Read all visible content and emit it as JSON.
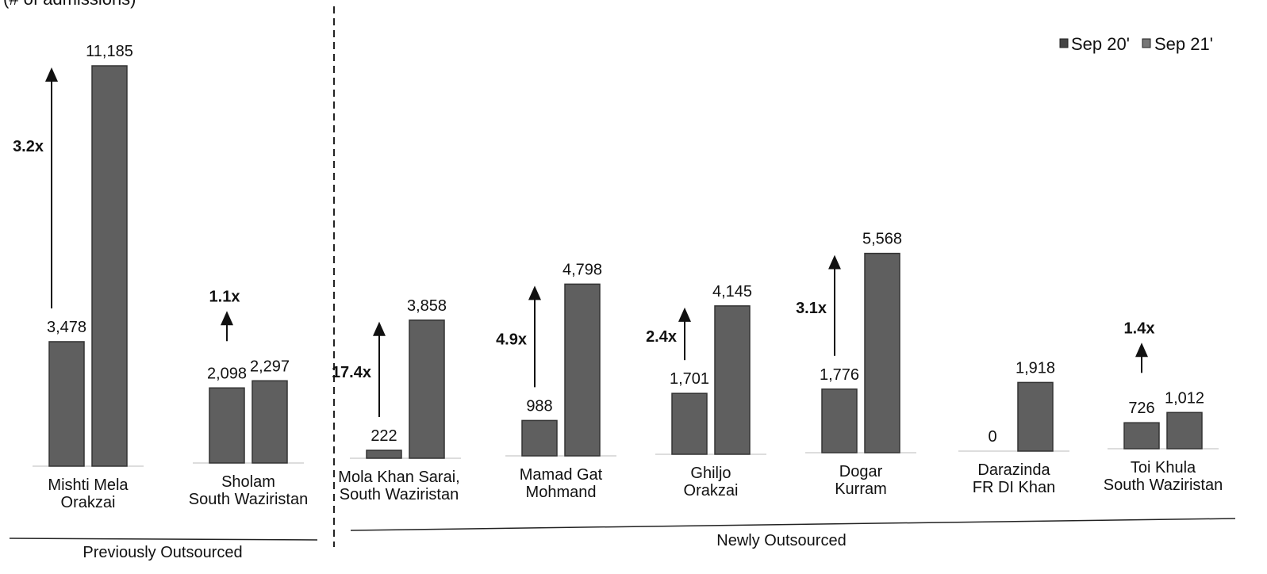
{
  "chart_data": {
    "type": "bar",
    "title_partial": "(# of admissions)",
    "legend_position": "top-right",
    "grid": false,
    "ylim": [
      0,
      11185
    ],
    "categories": [
      [
        "Mishti Mela",
        "Orakzai"
      ],
      [
        "Sholam",
        "South Waziristan"
      ],
      [
        "Mola Khan Sarai,",
        "South Waziristan"
      ],
      [
        "Mamad Gat",
        "Mohmand"
      ],
      [
        "Ghiljo",
        "Orakzai"
      ],
      [
        "Dogar",
        "Kurram"
      ],
      [
        "Darazinda",
        "FR DI Khan"
      ],
      [
        "Toi Khula",
        "South Waziristan"
      ]
    ],
    "series": [
      {
        "name": "Sep 20'",
        "values": [
          3478,
          2098,
          222,
          988,
          1701,
          1776,
          0,
          726
        ]
      },
      {
        "name": "Sep 21'",
        "values": [
          11185,
          2297,
          3858,
          4798,
          4145,
          5568,
          1918,
          1012
        ]
      }
    ],
    "value_labels": {
      "sep20": [
        "3,478",
        "2,098",
        "222",
        "988",
        "1,701",
        "1,776",
        "0",
        "726"
      ],
      "sep21": [
        "11,185",
        "2,297",
        "3,858",
        "4,798",
        "4,145",
        "5,568",
        "1,918",
        "1,012"
      ]
    },
    "multipliers": [
      "3.2x",
      "1.1x",
      "17.4x",
      "4.9x",
      "2.4x",
      "3.1x",
      "",
      "1.4x"
    ],
    "groups": [
      {
        "label": "Previously Outsourced",
        "category_indices": [
          0,
          1
        ]
      },
      {
        "label": "Newly Outsourced",
        "category_indices": [
          2,
          3,
          4,
          5,
          6,
          7
        ]
      }
    ],
    "colors": {
      "bar": "#5f5f5f",
      "bar_stroke": "#333333",
      "text": "#111111"
    }
  }
}
